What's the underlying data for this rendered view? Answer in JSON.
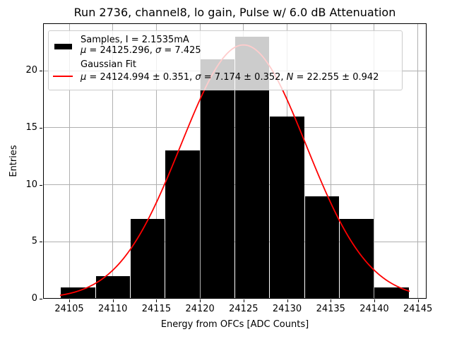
{
  "title": "Run 2736, channel8, lo gain, Pulse w/ 6.0 dB Attenuation",
  "axes": {
    "xlabel": "Energy from OFCs [ADC Counts]",
    "ylabel": "Entries"
  },
  "legend": {
    "samples_label": "Samples, I = 2.1535mA",
    "samples_stats": "μ = 24125.296, σ = 7.425",
    "fit_label": "Gaussian Fit",
    "fit_stats": "μ = 24124.994 ± 0.351, σ = 7.174 ± 0.352, N = 22.255 ± 0.942"
  },
  "colors": {
    "bar": "#000000",
    "fit_line": "#ff0000",
    "grid": "#b0b0b0",
    "legend_border": "#cccccc",
    "background": "#ffffff"
  },
  "chart_data": {
    "type": "bar",
    "subtype": "histogram",
    "title": "Run 2736, channel8, lo gain, Pulse w/ 6.0 dB Attenuation",
    "xlabel": "Energy from OFCs [ADC Counts]",
    "ylabel": "Entries",
    "bin_edges": [
      24104,
      24108,
      24112,
      24116,
      24120,
      24124,
      24128,
      24132,
      24136,
      24140,
      24144
    ],
    "counts": [
      1,
      2,
      7,
      13,
      21,
      23,
      16,
      9,
      7,
      1
    ],
    "total_entries": 100,
    "bar_color": "#000000",
    "gaussian_fit": {
      "mu": 24124.994,
      "mu_err": 0.351,
      "sigma": 7.174,
      "sigma_err": 0.352,
      "amplitude": 22.255,
      "amplitude_err": 0.942,
      "x_start": 24104,
      "x_end": 24144,
      "color": "#ff0000"
    },
    "sample_stats": {
      "mu": 24125.296,
      "sigma": 7.425,
      "current_mA": 2.1535
    },
    "xlim": [
      24102,
      24146
    ],
    "ylim": [
      0,
      24.15
    ],
    "x_ticks": [
      24105,
      24110,
      24115,
      24120,
      24125,
      24130,
      24135,
      24140,
      24145
    ],
    "y_ticks": [
      0,
      5,
      10,
      15,
      20
    ],
    "grid": true,
    "legend_position": "upper left"
  }
}
